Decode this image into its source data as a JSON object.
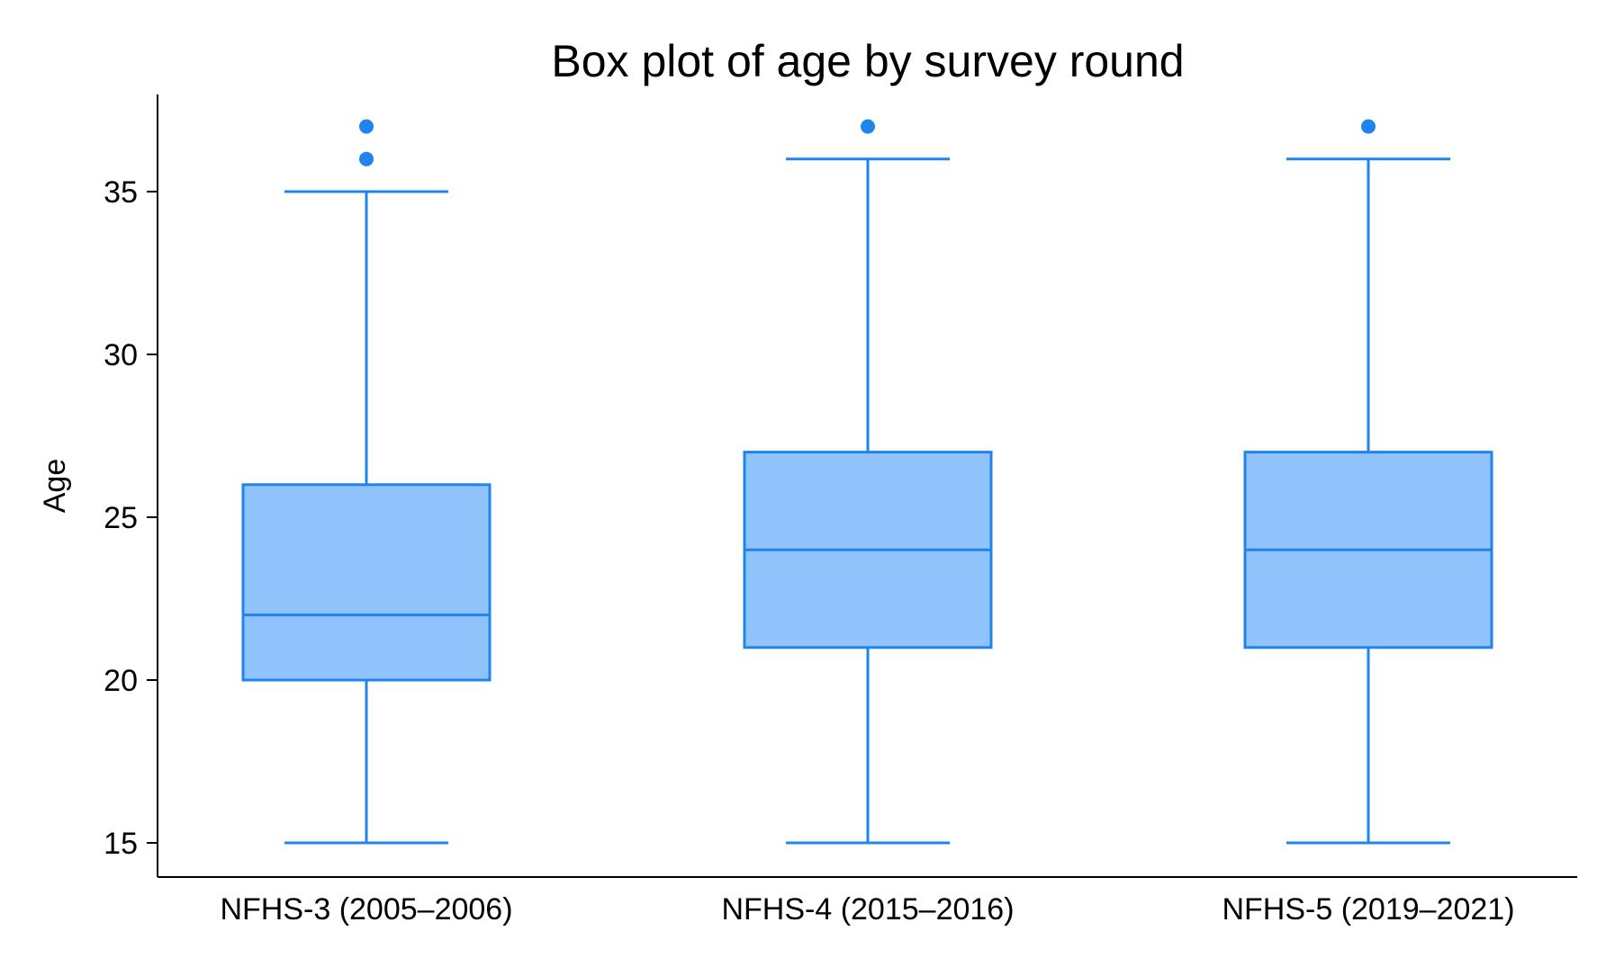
{
  "chart_data": {
    "type": "box",
    "title": "Box plot of age by survey round",
    "xlabel": "",
    "ylabel": "Age",
    "ylim": [
      14,
      38
    ],
    "yticks": [
      15,
      20,
      25,
      30,
      35
    ],
    "grid": false,
    "legend": "none",
    "colors": {
      "box_fill": "#90c2fb",
      "stroke": "#1f84ee",
      "outlier": "#1f84ee",
      "axis": "#000000"
    },
    "categories": [
      "NFHS-3 (2005–2006)",
      "NFHS-4 (2015–2016)",
      "NFHS-5 (2019–2021)"
    ],
    "boxes": [
      {
        "category": "NFHS-3 (2005–2006)",
        "whisker_low": 15,
        "q1": 20,
        "median": 22,
        "q3": 26,
        "whisker_high": 35,
        "outliers": [
          36,
          37
        ]
      },
      {
        "category": "NFHS-4 (2015–2016)",
        "whisker_low": 15,
        "q1": 21,
        "median": 24,
        "q3": 27,
        "whisker_high": 36,
        "outliers": [
          37
        ]
      },
      {
        "category": "NFHS-5 (2019–2021)",
        "whisker_low": 15,
        "q1": 21,
        "median": 24,
        "q3": 27,
        "whisker_high": 36,
        "outliers": [
          37
        ]
      }
    ]
  }
}
